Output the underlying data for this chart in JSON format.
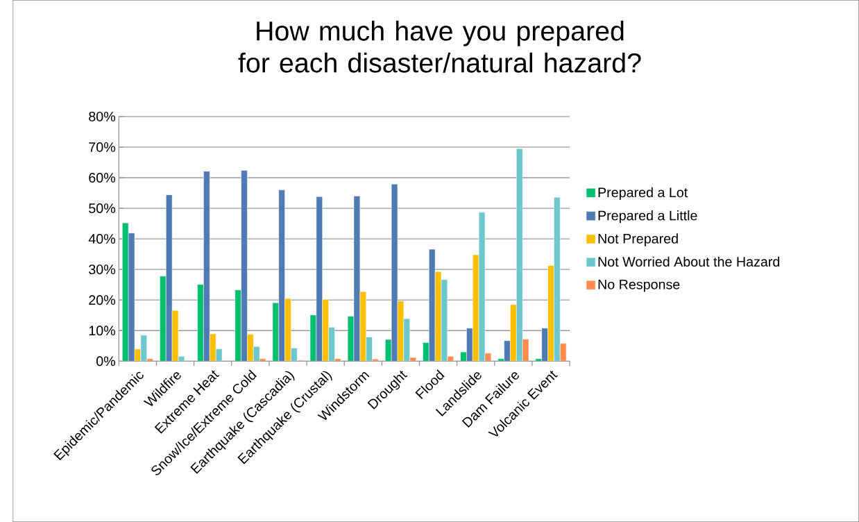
{
  "chart_data": {
    "type": "bar",
    "title": "How much have you prepared for each disaster/natural hazard?",
    "categories": [
      "Epidemic/Pandemic",
      "Wildfire",
      "Extreme Heat",
      "Snow/Ice/Extreme Cold",
      "Earthquake (Cascadia)",
      "Earthquake (Crustal)",
      "Windstorm",
      "Drought",
      "Flood",
      "Landslide",
      "Dam Failure",
      "Volcanic Event"
    ],
    "series": [
      {
        "name": "Prepared a Lot",
        "color": "#00bf6f",
        "values": [
          45.2,
          27.8,
          25.1,
          23.3,
          19.1,
          15.1,
          14.7,
          7.1,
          6.1,
          3.0,
          0.8,
          0.8
        ]
      },
      {
        "name": "Prepared a Little",
        "color": "#4f7ab3",
        "values": [
          41.9,
          54.4,
          62.1,
          62.4,
          56.0,
          53.8,
          54.0,
          57.9,
          36.6,
          10.8,
          6.7,
          10.8
        ]
      },
      {
        "name": "Not Prepared",
        "color": "#f9bf00",
        "values": [
          4.0,
          16.6,
          8.9,
          8.8,
          20.5,
          20.2,
          22.7,
          19.7,
          29.3,
          34.8,
          18.5,
          31.3
        ]
      },
      {
        "name": "Not Worried About the Hazard",
        "color": "#6cc8cc",
        "values": [
          8.5,
          1.6,
          4.0,
          4.8,
          4.3,
          11.1,
          7.9,
          13.9,
          26.7,
          48.7,
          69.5,
          53.6
        ]
      },
      {
        "name": "No Response",
        "color": "#ff8c4f",
        "values": [
          0.8,
          null,
          null,
          0.8,
          0.3,
          0.8,
          0.7,
          1.2,
          1.6,
          2.6,
          7.2,
          5.8
        ]
      }
    ],
    "ylim": [
      0,
      80
    ],
    "yticks": [
      {
        "value": 0,
        "label": "0%"
      },
      {
        "value": 10,
        "label": "10%"
      },
      {
        "value": 20,
        "label": "20%"
      },
      {
        "value": 30,
        "label": "30%"
      },
      {
        "value": 40,
        "label": "40%"
      },
      {
        "value": 50,
        "label": "50%"
      },
      {
        "value": 60,
        "label": "60%"
      },
      {
        "value": 70,
        "label": "70%"
      },
      {
        "value": 80,
        "label": "80%"
      }
    ],
    "grid": "y",
    "legend": "right"
  }
}
